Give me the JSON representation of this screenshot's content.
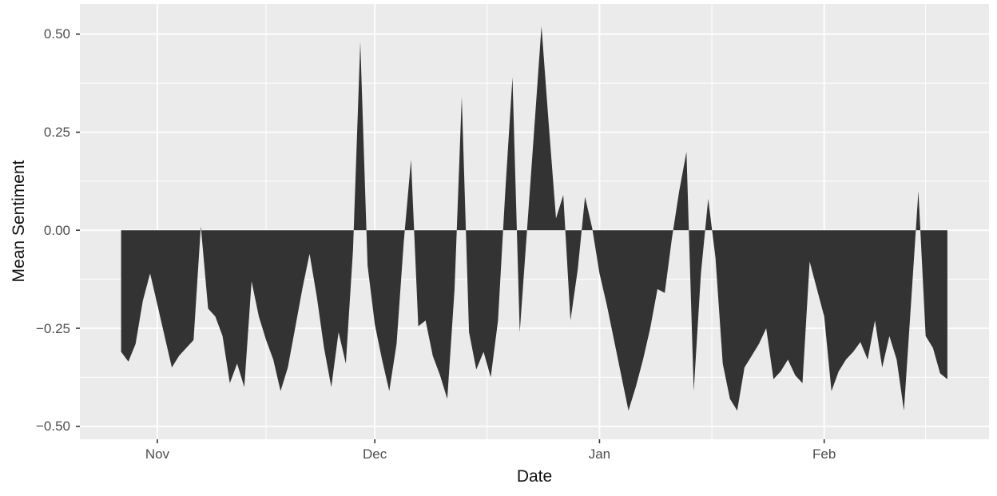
{
  "figure": {
    "background": "#FFFFFF",
    "panel_background": "#EBEBEB",
    "grid_color": "#FFFFFF",
    "area_fill": "#333333",
    "tick_mark_color": "#333333",
    "axis_text_color": "#4D4D4D",
    "axis_title_color": "#111111"
  },
  "chart_data": {
    "type": "area",
    "title": "",
    "xlabel": "Date",
    "ylabel": "Mean Sentiment",
    "legend": "none",
    "grid": true,
    "baseline": 0,
    "ylim": [
      -0.58,
      0.58
    ],
    "y_major_ticks": {
      "values": [
        0.5,
        0.25,
        0,
        -0.25,
        -0.5
      ],
      "labels": [
        "0.50",
        "0.25",
        "0.00",
        "−0.25",
        "−0.50"
      ]
    },
    "y_minor_values": [
      0.375,
      0.125,
      -0.125,
      -0.375
    ],
    "x_major_ticks": {
      "labels": [
        "Nov",
        "Dec",
        "Jan",
        "Feb"
      ],
      "day_indices": [
        5,
        35,
        66,
        97
      ]
    },
    "x_minor_day_indices": [
      20,
      50.5,
      81.5,
      111
    ],
    "x": [
      "Oct 27",
      "Oct 28",
      "Oct 29",
      "Oct 30",
      "Oct 31",
      "Nov 1",
      "Nov 2",
      "Nov 3",
      "Nov 4",
      "Nov 5",
      "Nov 6",
      "Nov 7",
      "Nov 8",
      "Nov 9",
      "Nov 10",
      "Nov 11",
      "Nov 12",
      "Nov 13",
      "Nov 14",
      "Nov 15",
      "Nov 16",
      "Nov 17",
      "Nov 18",
      "Nov 19",
      "Nov 20",
      "Nov 21",
      "Nov 22",
      "Nov 23",
      "Nov 24",
      "Nov 25",
      "Nov 26",
      "Nov 27",
      "Nov 28",
      "Nov 29",
      "Nov 30",
      "Dec 1",
      "Dec 2",
      "Dec 3",
      "Dec 4",
      "Dec 5",
      "Dec 6",
      "Dec 7",
      "Dec 8",
      "Dec 9",
      "Dec 10",
      "Dec 11",
      "Dec 12",
      "Dec 13",
      "Dec 14",
      "Dec 15",
      "Dec 16",
      "Dec 17",
      "Dec 18",
      "Dec 19",
      "Dec 20",
      "Dec 21",
      "Dec 22",
      "Dec 23",
      "Dec 24",
      "Dec 25",
      "Dec 26",
      "Dec 27",
      "Dec 28",
      "Dec 29",
      "Dec 30",
      "Dec 31",
      "Jan 1",
      "Jan 2",
      "Jan 3",
      "Jan 4",
      "Jan 5",
      "Jan 6",
      "Jan 7",
      "Jan 8",
      "Jan 9",
      "Jan 10",
      "Jan 11",
      "Jan 12",
      "Jan 13",
      "Jan 14",
      "Jan 15",
      "Jan 16",
      "Jan 17",
      "Jan 18",
      "Jan 19",
      "Jan 20",
      "Jan 21",
      "Jan 22",
      "Jan 23",
      "Jan 24",
      "Jan 25",
      "Jan 26",
      "Jan 27",
      "Jan 28",
      "Jan 29",
      "Jan 30",
      "Jan 31",
      "Feb 1",
      "Feb 2",
      "Feb 3",
      "Feb 4",
      "Feb 5",
      "Feb 6",
      "Feb 7",
      "Feb 8",
      "Feb 9",
      "Feb 10",
      "Feb 11",
      "Feb 12",
      "Feb 13",
      "Feb 14",
      "Feb 15",
      "Feb 16",
      "Feb 17",
      "Feb 18"
    ],
    "values": [
      -0.31,
      -0.335,
      -0.29,
      -0.18,
      -0.11,
      -0.19,
      -0.27,
      -0.35,
      -0.32,
      -0.3,
      -0.28,
      0.01,
      -0.2,
      -0.22,
      -0.27,
      -0.39,
      -0.34,
      -0.4,
      -0.13,
      -0.22,
      -0.28,
      -0.33,
      -0.41,
      -0.35,
      -0.25,
      -0.15,
      -0.06,
      -0.17,
      -0.3,
      -0.4,
      -0.26,
      -0.34,
      -0.05,
      0.48,
      -0.09,
      -0.24,
      -0.33,
      -0.41,
      -0.29,
      -0.03,
      0.18,
      -0.245,
      -0.23,
      -0.32,
      -0.37,
      -0.43,
      -0.15,
      0.34,
      -0.26,
      -0.355,
      -0.31,
      -0.375,
      -0.23,
      0.1,
      0.39,
      -0.26,
      0.0,
      0.26,
      0.52,
      0.27,
      0.03,
      0.09,
      -0.23,
      -0.1,
      0.085,
      0.005,
      -0.11,
      -0.19,
      -0.28,
      -0.37,
      -0.46,
      -0.4,
      -0.33,
      -0.25,
      -0.15,
      -0.16,
      -0.02,
      0.1,
      0.2,
      -0.41,
      -0.11,
      0.08,
      -0.07,
      -0.34,
      -0.43,
      -0.46,
      -0.35,
      -0.32,
      -0.29,
      -0.25,
      -0.38,
      -0.36,
      -0.33,
      -0.37,
      -0.39,
      -0.08,
      -0.15,
      -0.22,
      -0.41,
      -0.36,
      -0.33,
      -0.31,
      -0.285,
      -0.33,
      -0.23,
      -0.35,
      -0.27,
      -0.33,
      -0.46,
      -0.18,
      0.1,
      -0.27,
      -0.3,
      -0.365,
      -0.38
    ]
  }
}
